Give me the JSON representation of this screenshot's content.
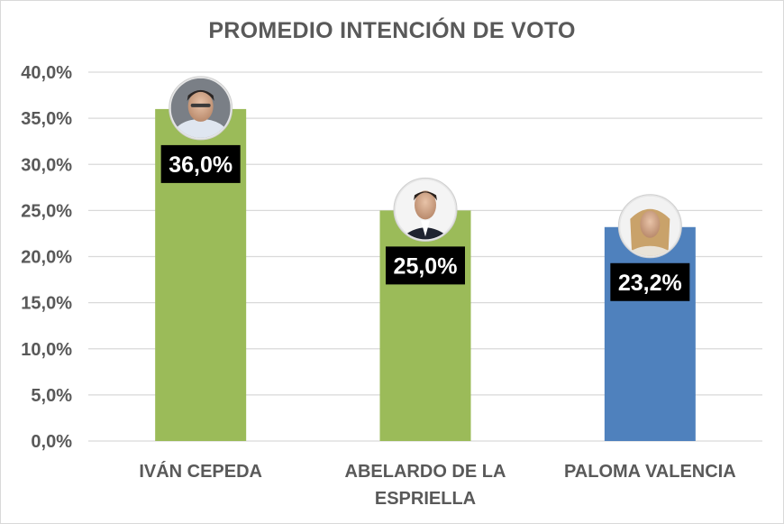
{
  "colors": {
    "green": "#9bbb59",
    "blue": "#4f81bd",
    "grid": "#d9d9d9",
    "text": "#595959",
    "label_bg": "#000000"
  },
  "chart_data": {
    "type": "bar",
    "title": "PROMEDIO INTENCIÓN DE VOTO",
    "categories": [
      [
        "IVÁN CEPEDA"
      ],
      [
        "ABELARDO DE LA",
        "ESPRIELLA"
      ],
      [
        "PALOMA VALENCIA"
      ]
    ],
    "values": [
      36.0,
      25.0,
      23.2
    ],
    "data_labels": [
      "36,0%",
      "25,0%",
      "23,2%"
    ],
    "bar_colors": [
      "#9bbb59",
      "#9bbb59",
      "#4f81bd"
    ],
    "avatar_icons": [
      "candidate-photo-ivan-cepeda",
      "candidate-photo-abelardo-de-la-espriella",
      "candidate-photo-paloma-valencia"
    ],
    "ylim": [
      0,
      40
    ],
    "yticks": [
      0,
      5,
      10,
      15,
      20,
      25,
      30,
      35,
      40
    ],
    "ytick_labels": [
      "0,0%",
      "5,0%",
      "10,0%",
      "15,0%",
      "20,0%",
      "25,0%",
      "30,0%",
      "35,0%",
      "40,0%"
    ],
    "grid": true,
    "legend": "none"
  }
}
